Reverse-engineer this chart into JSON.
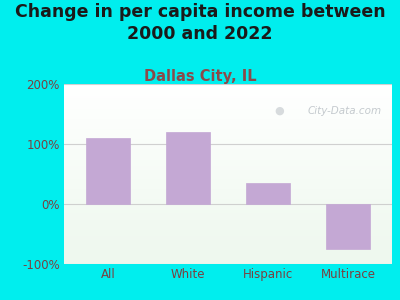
{
  "title": "Change in per capita income between\n2000 and 2022",
  "subtitle": "Dallas City, IL",
  "categories": [
    "All",
    "White",
    "Hispanic",
    "Multirace"
  ],
  "values": [
    110,
    120,
    35,
    -75
  ],
  "bar_color": "#C4A8D4",
  "background_color": "#00EEEE",
  "title_color": "#1a1a1a",
  "subtitle_color": "#8B4A4A",
  "tick_color": "#7a4040",
  "ylim": [
    -100,
    200
  ],
  "yticks": [
    -100,
    0,
    100,
    200
  ],
  "ytick_labels": [
    "-100%",
    "0%",
    "100%",
    "200%"
  ],
  "watermark": "City-Data.com",
  "title_fontsize": 12.5,
  "subtitle_fontsize": 10.5
}
